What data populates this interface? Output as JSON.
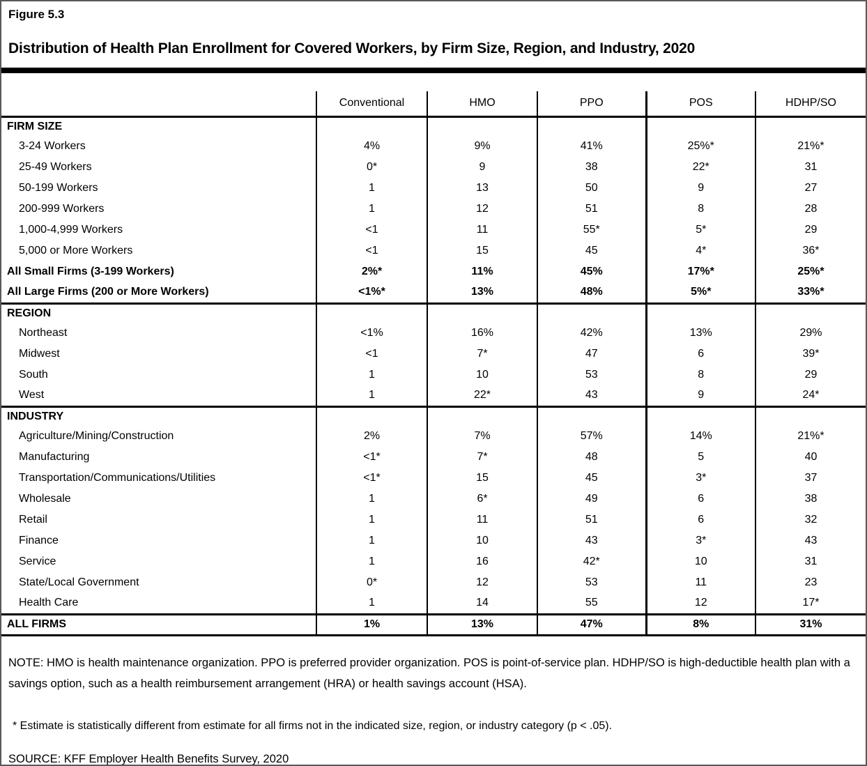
{
  "header": {
    "figure_label": "Figure 5.3",
    "title": "Distribution of Health Plan Enrollment for Covered Workers, by Firm Size, Region, and Industry, 2020"
  },
  "table": {
    "columns": [
      "Conventional",
      "HMO",
      "PPO",
      "POS",
      "HDHP/SO"
    ],
    "sections": [
      {
        "header": "FIRM SIZE",
        "header_values": [
          "",
          "",
          "",
          "",
          ""
        ],
        "rows": [
          {
            "label": "3-24 Workers",
            "indent": true,
            "bold": false,
            "values": [
              "4%",
              "9%",
              "41%",
              "25%*",
              "21%*"
            ]
          },
          {
            "label": "25-49 Workers",
            "indent": true,
            "bold": false,
            "values": [
              "0*",
              "9",
              "38",
              "22*",
              "31"
            ]
          },
          {
            "label": "50-199 Workers",
            "indent": true,
            "bold": false,
            "values": [
              "1",
              "13",
              "50",
              "9",
              "27"
            ]
          },
          {
            "label": "200-999 Workers",
            "indent": true,
            "bold": false,
            "values": [
              "1",
              "12",
              "51",
              "8",
              "28"
            ]
          },
          {
            "label": "1,000-4,999 Workers",
            "indent": true,
            "bold": false,
            "values": [
              "<1",
              "11",
              "55*",
              "5*",
              "29"
            ]
          },
          {
            "label": "5,000 or More Workers",
            "indent": true,
            "bold": false,
            "values": [
              "<1",
              "15",
              "45",
              "4*",
              "36*"
            ]
          },
          {
            "label": "All Small Firms (3-199 Workers)",
            "indent": false,
            "bold": true,
            "values": [
              "2%*",
              "11%",
              "45%",
              "17%*",
              "25%*"
            ]
          },
          {
            "label": "All Large Firms (200 or More Workers)",
            "indent": false,
            "bold": true,
            "values": [
              "<1%*",
              "13%",
              "48%",
              "5%*",
              "33%*"
            ]
          }
        ]
      },
      {
        "header": "REGION",
        "header_values": [
          "",
          "",
          "",
          "",
          ""
        ],
        "rows": [
          {
            "label": "Northeast",
            "indent": true,
            "bold": false,
            "values": [
              "<1%",
              "16%",
              "42%",
              "13%",
              "29%"
            ]
          },
          {
            "label": "Midwest",
            "indent": true,
            "bold": false,
            "values": [
              "<1",
              "7*",
              "47",
              "6",
              "39*"
            ]
          },
          {
            "label": "South",
            "indent": true,
            "bold": false,
            "values": [
              "1",
              "10",
              "53",
              "8",
              "29"
            ]
          },
          {
            "label": "West",
            "indent": true,
            "bold": false,
            "values": [
              "1",
              "22*",
              "43",
              "9",
              "24*"
            ]
          }
        ]
      },
      {
        "header": "INDUSTRY",
        "header_values": [
          "",
          "",
          "",
          "",
          ""
        ],
        "rows": [
          {
            "label": "Agriculture/Mining/Construction",
            "indent": true,
            "bold": false,
            "values": [
              "2%",
              "7%",
              "57%",
              "14%",
              "21%*"
            ]
          },
          {
            "label": "Manufacturing",
            "indent": true,
            "bold": false,
            "values": [
              "<1*",
              "7*",
              "48",
              "5",
              "40"
            ]
          },
          {
            "label": "Transportation/Communications/Utilities",
            "indent": true,
            "bold": false,
            "values": [
              "<1*",
              "15",
              "45",
              "3*",
              "37"
            ]
          },
          {
            "label": "Wholesale",
            "indent": true,
            "bold": false,
            "values": [
              "1",
              "6*",
              "49",
              "6",
              "38"
            ]
          },
          {
            "label": "Retail",
            "indent": true,
            "bold": false,
            "values": [
              "1",
              "11",
              "51",
              "6",
              "32"
            ]
          },
          {
            "label": "Finance",
            "indent": true,
            "bold": false,
            "values": [
              "1",
              "10",
              "43",
              "3*",
              "43"
            ]
          },
          {
            "label": "Service",
            "indent": true,
            "bold": false,
            "values": [
              "1",
              "16",
              "42*",
              "10",
              "31"
            ]
          },
          {
            "label": "State/Local Government",
            "indent": true,
            "bold": false,
            "values": [
              "0*",
              "12",
              "53",
              "11",
              "23"
            ]
          },
          {
            "label": "Health Care",
            "indent": true,
            "bold": false,
            "values": [
              "1",
              "14",
              "55",
              "12",
              "17*"
            ]
          }
        ]
      },
      {
        "header": "ALL FIRMS",
        "header_values": [
          "1%",
          "13%",
          "47%",
          "8%",
          "31%"
        ],
        "rows": []
      }
    ]
  },
  "notes": {
    "note": "NOTE: HMO is health maintenance organization. PPO is preferred provider organization. POS is point-of-service plan. HDHP/SO is high-deductible health plan with a savings option, such as a health reimbursement arrangement (HRA) or health savings account (HSA).",
    "asterisk": "* Estimate is statistically different from estimate for all firms not in the indicated size, region, or industry category (p < .05).",
    "source": "SOURCE: KFF Employer Health Benefits Survey, 2020"
  }
}
